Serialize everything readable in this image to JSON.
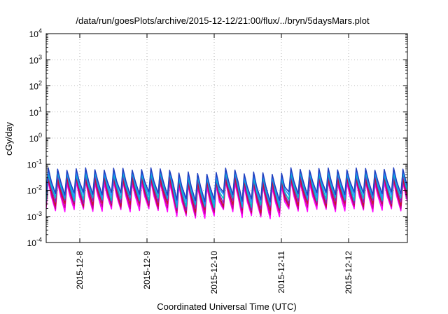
{
  "chart_data": {
    "type": "line",
    "title": "/data/run/goesPlots/archive/2015-12-12/21:00/flux/../bryn/5daysMars.plot",
    "xlabel": "Coordinated Universal Time (UTC)",
    "ylabel": "cGy/day",
    "y_scale": "log",
    "ylim": [
      0.0001,
      10000
    ],
    "y_ticks": [
      {
        "value": 0.0001,
        "base": "10",
        "exp": "-4"
      },
      {
        "value": 0.001,
        "base": "10",
        "exp": "-3"
      },
      {
        "value": 0.01,
        "base": "10",
        "exp": "-2"
      },
      {
        "value": 0.1,
        "base": "10",
        "exp": "-1"
      },
      {
        "value": 1,
        "base": "10",
        "exp": "0"
      },
      {
        "value": 10,
        "base": "10",
        "exp": "1"
      },
      {
        "value": 100,
        "base": "10",
        "exp": "2"
      },
      {
        "value": 1000,
        "base": "10",
        "exp": "3"
      },
      {
        "value": 10000,
        "base": "10",
        "exp": "4"
      }
    ],
    "xlim": [
      "2015-12-07T12:00",
      "2015-12-12T21:00"
    ],
    "x_ticks": [
      {
        "value": "2015-12-08T00:00",
        "label": "2015-12-8"
      },
      {
        "value": "2015-12-09T00:00",
        "label": "2015-12-9"
      },
      {
        "value": "2015-12-10T00:00",
        "label": "2015-12-10"
      },
      {
        "value": "2015-12-11T00:00",
        "label": "2015-12-11"
      },
      {
        "value": "2015-12-12T00:00",
        "label": "2015-12-12"
      }
    ],
    "grid": true,
    "series": [
      {
        "color": "#ff00ff",
        "peak": 0.02,
        "trough": 0.0017
      },
      {
        "color": "#cc0099",
        "peak": 0.025,
        "trough": 0.0022
      },
      {
        "color": "#c8102e",
        "peak": 0.03,
        "trough": 0.0028
      },
      {
        "color": "#8a1cbf",
        "peak": 0.04,
        "trough": 0.0035
      },
      {
        "color": "#00c0c0",
        "peak": 0.045,
        "trough": 0.0045
      },
      {
        "color": "#1e90ff",
        "peak": 0.055,
        "trough": 0.006
      },
      {
        "color": "#2040c0",
        "peak": 0.065,
        "trough": 0.0075
      }
    ],
    "periodic_pattern": {
      "cycles_per_day": 7.2,
      "dip_days": [
        "2015-12-09T16:00",
        "2015-12-10T16:00"
      ]
    }
  }
}
